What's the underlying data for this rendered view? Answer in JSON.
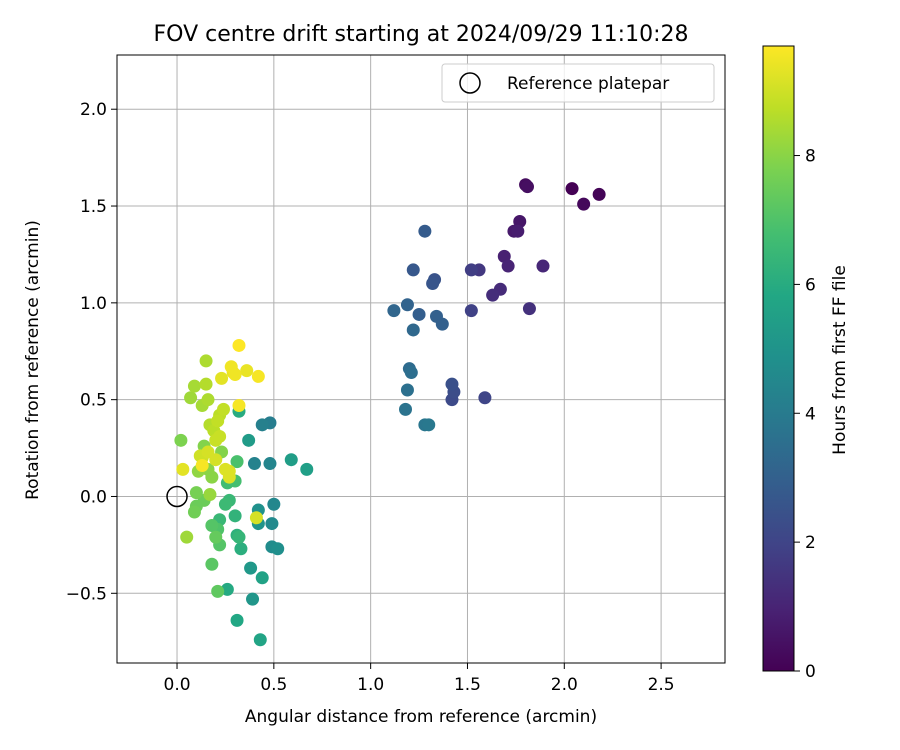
{
  "chart_data": {
    "type": "scatter",
    "title": "FOV centre drift starting at 2024/09/29 11:10:28",
    "xlabel": "Angular distance from reference (arcmin)",
    "ylabel": "Rotation from reference (arcmin)",
    "xlim": [
      -0.31,
      2.83
    ],
    "ylim": [
      -0.86,
      2.28
    ],
    "x_ticks": [
      0.0,
      0.5,
      1.0,
      1.5,
      2.0,
      2.5
    ],
    "x_tick_labels": [
      "0.0",
      "0.5",
      "1.0",
      "1.5",
      "2.0",
      "2.5"
    ],
    "y_ticks": [
      -0.5,
      0.0,
      0.5,
      1.0,
      1.5,
      2.0
    ],
    "y_tick_labels": [
      "−0.5",
      "0.0",
      "0.5",
      "1.0",
      "1.5",
      "2.0"
    ],
    "grid": true,
    "legend": {
      "position": "top-right",
      "entries": [
        "Reference platepar"
      ]
    },
    "reference_point": {
      "x": 0.0,
      "y": 0.0,
      "marker": "open-circle"
    },
    "colorbar": {
      "label": "Hours from first FF file",
      "colormap": "viridis",
      "range": [
        0,
        9.7
      ],
      "ticks": [
        0,
        2,
        4,
        6,
        8
      ],
      "tick_labels": [
        "0",
        "2",
        "4",
        "6",
        "8"
      ]
    },
    "points": [
      [
        2.04,
        1.59,
        0.0
      ],
      [
        2.18,
        1.56,
        0.1
      ],
      [
        2.1,
        1.51,
        0.2
      ],
      [
        1.8,
        1.61,
        0.3
      ],
      [
        1.81,
        1.6,
        0.4
      ],
      [
        1.77,
        1.42,
        0.6
      ],
      [
        1.74,
        1.37,
        0.7
      ],
      [
        1.76,
        1.37,
        0.8
      ],
      [
        1.69,
        1.24,
        0.9
      ],
      [
        1.71,
        1.19,
        1.0
      ],
      [
        1.89,
        1.19,
        1.1
      ],
      [
        1.67,
        1.07,
        1.2
      ],
      [
        1.63,
        1.04,
        1.3
      ],
      [
        1.82,
        0.97,
        1.4
      ],
      [
        1.56,
        1.17,
        1.6
      ],
      [
        1.52,
        1.17,
        1.8
      ],
      [
        1.52,
        0.96,
        1.9
      ],
      [
        1.59,
        0.51,
        2.0
      ],
      [
        1.42,
        0.5,
        2.2
      ],
      [
        1.43,
        0.54,
        2.3
      ],
      [
        1.42,
        0.58,
        2.4
      ],
      [
        1.33,
        1.12,
        2.5
      ],
      [
        1.32,
        1.1,
        2.6
      ],
      [
        1.22,
        1.17,
        2.7
      ],
      [
        1.28,
        1.37,
        2.8
      ],
      [
        1.25,
        0.94,
        2.9
      ],
      [
        1.34,
        0.93,
        3.0
      ],
      [
        1.37,
        0.89,
        3.0
      ],
      [
        1.19,
        0.99,
        3.1
      ],
      [
        1.12,
        0.96,
        3.2
      ],
      [
        1.22,
        0.86,
        3.3
      ],
      [
        1.2,
        0.66,
        3.4
      ],
      [
        1.21,
        0.64,
        3.5
      ],
      [
        1.19,
        0.55,
        3.6
      ],
      [
        1.18,
        0.45,
        3.7
      ],
      [
        1.28,
        0.37,
        3.8
      ],
      [
        1.3,
        0.37,
        3.9
      ],
      [
        0.48,
        0.38,
        4.1
      ],
      [
        0.44,
        0.37,
        4.2
      ],
      [
        0.4,
        0.17,
        4.3
      ],
      [
        0.48,
        0.17,
        4.4
      ],
      [
        0.5,
        -0.04,
        4.5
      ],
      [
        0.49,
        -0.14,
        4.6
      ],
      [
        0.49,
        -0.26,
        4.7
      ],
      [
        0.52,
        -0.27,
        4.8
      ],
      [
        0.42,
        -0.07,
        4.9
      ],
      [
        0.42,
        -0.14,
        5.0
      ],
      [
        0.39,
        -0.53,
        5.1
      ],
      [
        0.38,
        -0.37,
        5.2
      ],
      [
        0.37,
        0.29,
        5.3
      ],
      [
        0.59,
        0.19,
        5.4
      ],
      [
        0.67,
        0.14,
        5.5
      ],
      [
        0.44,
        -0.42,
        5.6
      ],
      [
        0.43,
        -0.74,
        5.7
      ],
      [
        0.31,
        -0.64,
        5.8
      ],
      [
        0.26,
        -0.48,
        5.9
      ],
      [
        0.32,
        0.44,
        6.0
      ],
      [
        0.33,
        -0.27,
        6.1
      ],
      [
        0.31,
        -0.2,
        6.2
      ],
      [
        0.3,
        -0.1,
        6.3
      ],
      [
        0.32,
        -0.21,
        6.4
      ],
      [
        0.22,
        -0.12,
        6.5
      ],
      [
        0.27,
        -0.02,
        6.5
      ],
      [
        0.25,
        -0.04,
        6.6
      ],
      [
        0.26,
        0.07,
        6.7
      ],
      [
        0.3,
        0.08,
        6.8
      ],
      [
        0.31,
        0.18,
        6.9
      ],
      [
        0.21,
        -0.17,
        7.0
      ],
      [
        0.18,
        -0.15,
        7.1
      ],
      [
        0.22,
        -0.25,
        7.1
      ],
      [
        0.18,
        -0.35,
        7.2
      ],
      [
        0.21,
        -0.49,
        7.3
      ],
      [
        0.2,
        -0.21,
        7.4
      ],
      [
        0.14,
        -0.02,
        7.5
      ],
      [
        0.1,
        -0.05,
        7.5
      ],
      [
        0.09,
        -0.08,
        7.6
      ],
      [
        0.1,
        0.02,
        7.7
      ],
      [
        0.02,
        0.29,
        7.8
      ],
      [
        0.14,
        0.26,
        7.9
      ],
      [
        0.23,
        0.23,
        7.9
      ],
      [
        0.16,
        0.14,
        8.0
      ],
      [
        0.18,
        0.1,
        8.0
      ],
      [
        0.11,
        0.13,
        8.1
      ],
      [
        0.17,
        0.01,
        8.2
      ],
      [
        0.05,
        -0.21,
        8.3
      ],
      [
        0.07,
        0.51,
        8.3
      ],
      [
        0.09,
        0.57,
        8.4
      ],
      [
        0.13,
        0.47,
        8.4
      ],
      [
        0.16,
        0.5,
        8.5
      ],
      [
        0.15,
        0.7,
        8.5
      ],
      [
        0.15,
        0.58,
        8.6
      ],
      [
        0.17,
        0.37,
        8.6
      ],
      [
        0.19,
        0.34,
        8.7
      ],
      [
        0.22,
        0.42,
        8.7
      ],
      [
        0.21,
        0.39,
        8.8
      ],
      [
        0.24,
        0.45,
        8.8
      ],
      [
        0.2,
        0.29,
        8.9
      ],
      [
        0.22,
        0.31,
        8.9
      ],
      [
        0.13,
        0.2,
        9.0
      ],
      [
        0.12,
        0.21,
        9.0
      ],
      [
        0.16,
        0.23,
        9.1
      ],
      [
        0.2,
        0.19,
        9.1
      ],
      [
        0.41,
        -0.11,
        9.1
      ],
      [
        0.25,
        0.14,
        9.2
      ],
      [
        0.27,
        0.13,
        9.2
      ],
      [
        0.27,
        0.1,
        9.2
      ],
      [
        0.03,
        0.14,
        9.3
      ],
      [
        0.23,
        0.61,
        9.3
      ],
      [
        0.29,
        0.64,
        9.4
      ],
      [
        0.36,
        0.65,
        9.4
      ],
      [
        0.28,
        0.67,
        9.5
      ],
      [
        0.3,
        0.63,
        9.5
      ],
      [
        0.42,
        0.62,
        9.6
      ],
      [
        0.32,
        0.47,
        9.6
      ],
      [
        0.13,
        0.16,
        9.6
      ],
      [
        0.32,
        0.78,
        9.7
      ]
    ]
  }
}
